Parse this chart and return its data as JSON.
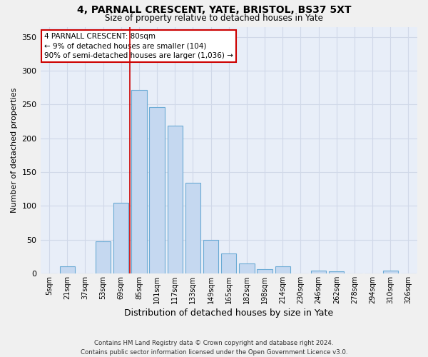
{
  "title": "4, PARNALL CRESCENT, YATE, BRISTOL, BS37 5XT",
  "subtitle": "Size of property relative to detached houses in Yate",
  "xlabel": "Distribution of detached houses by size in Yate",
  "ylabel": "Number of detached properties",
  "bar_color": "#c5d8f0",
  "bar_edge_color": "#6aaad4",
  "background_color": "#e8eef8",
  "grid_color": "#d0d8e8",
  "categories": [
    "5sqm",
    "21sqm",
    "37sqm",
    "53sqm",
    "69sqm",
    "85sqm",
    "101sqm",
    "117sqm",
    "133sqm",
    "149sqm",
    "165sqm",
    "182sqm",
    "198sqm",
    "214sqm",
    "230sqm",
    "246sqm",
    "262sqm",
    "278sqm",
    "294sqm",
    "310sqm",
    "326sqm"
  ],
  "values": [
    0,
    10,
    0,
    47,
    104,
    272,
    246,
    219,
    134,
    50,
    30,
    15,
    6,
    10,
    0,
    4,
    3,
    0,
    0,
    4,
    0
  ],
  "vline_x": 4.5,
  "vline_color": "#cc0000",
  "annotation_text": "4 PARNALL CRESCENT: 80sqm\n← 9% of detached houses are smaller (104)\n90% of semi-detached houses are larger (1,036) →",
  "annotation_box_color": "#ffffff",
  "annotation_box_edge": "#cc0000",
  "ylim": [
    0,
    365
  ],
  "yticks": [
    0,
    50,
    100,
    150,
    200,
    250,
    300,
    350
  ],
  "footer_line1": "Contains HM Land Registry data © Crown copyright and database right 2024.",
  "footer_line2": "Contains public sector information licensed under the Open Government Licence v3.0.",
  "fig_bg": "#f0f0f0"
}
